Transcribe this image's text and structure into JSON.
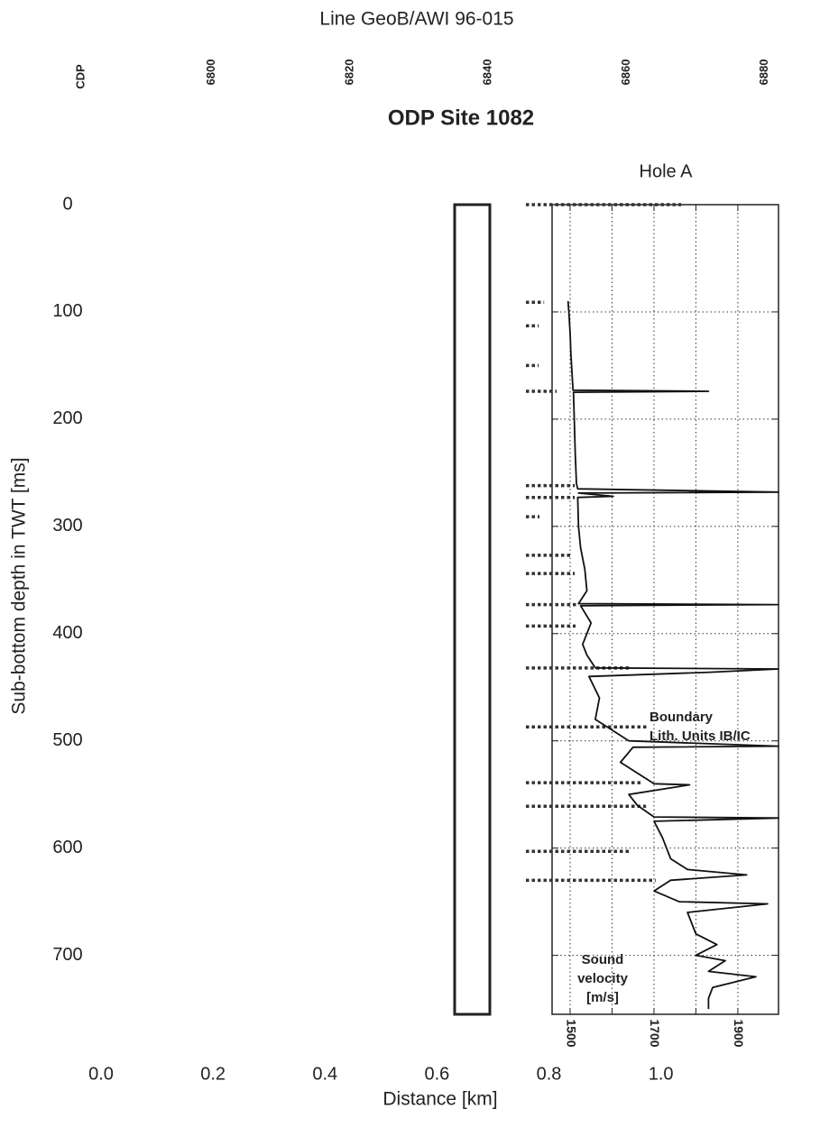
{
  "chart_data": {
    "type": "line",
    "title": "Line GeoB/AWI 96-015",
    "subtitle": "ODP Site 1082",
    "panel_title": "Hole A",
    "xlabel": "Distance [km]",
    "ylabel": "Sub-bottom depth in TWT [ms]",
    "x2label": "CDP",
    "xlim": [
      0,
      1.21
    ],
    "xticks": [
      {
        "value": 0,
        "label": "0.0"
      },
      0.2,
      0.4,
      0.6,
      0.8,
      {
        "value": 1,
        "label": "1.0"
      }
    ],
    "x2lim": [
      6784,
      6882
    ],
    "x2ticks": [
      6800,
      6820,
      6840,
      6860,
      6880
    ],
    "ylim": [
      0,
      755
    ],
    "yticks": [
      0,
      100,
      200,
      300,
      400,
      500,
      600,
      700
    ],
    "velocity_lim": [
      1457,
      1997
    ],
    "velocity_ticks": [
      1500,
      {
        "value": 1600,
        "label": null
      },
      1700,
      {
        "value": 1800,
        "label": null
      },
      1900
    ],
    "grid": true,
    "annotation": [
      "Boundary",
      "Lith. Units IB/IC"
    ],
    "series_label": [
      "Sound",
      "velocity",
      "[m/s]"
    ],
    "series": [
      {
        "color": "#111111",
        "depth": [
          90,
          100,
          120,
          140,
          160,
          173,
          174,
          175,
          200,
          230,
          260,
          265,
          268,
          269,
          272,
          273,
          300,
          320,
          340,
          360,
          372,
          373,
          374,
          390,
          410,
          420,
          432,
          433,
          436,
          440,
          460,
          480,
          490,
          500,
          505,
          506,
          520,
          540,
          541,
          550,
          560,
          571,
          572,
          575,
          590,
          610,
          620,
          625,
          630,
          640,
          650,
          652,
          660,
          680,
          690,
          700,
          705,
          715,
          720,
          730,
          740,
          750
        ],
        "values": [
          1495,
          1497,
          1500,
          1502,
          1505,
          1507,
          1830,
          1508,
          1510,
          1512,
          1515,
          1518,
          1997,
          1520,
          1603,
          1518,
          1520,
          1525,
          1535,
          1540,
          1520,
          1997,
          1525,
          1550,
          1530,
          1540,
          1560,
          1997,
          1833,
          1545,
          1570,
          1560,
          1600,
          1640,
          1997,
          1650,
          1620,
          1700,
          1785,
          1640,
          1660,
          1700,
          1997,
          1700,
          1720,
          1740,
          1780,
          1921,
          1740,
          1700,
          1760,
          1971,
          1780,
          1800,
          1850,
          1800,
          1870,
          1830,
          1943,
          1840,
          1830,
          1830
        ]
      }
    ],
    "reflectors": [
      0,
      91,
      113,
      150,
      174,
      262,
      273,
      291,
      327,
      344,
      373,
      393,
      432,
      487,
      539,
      561,
      603,
      630
    ],
    "reflector_ends": [
      1765,
      1438,
      1425,
      1425,
      1468,
      1511,
      1511,
      1427,
      1502,
      1511,
      1517,
      1513,
      1646,
      1685,
      1672,
      1681,
      1646,
      1704
    ]
  }
}
